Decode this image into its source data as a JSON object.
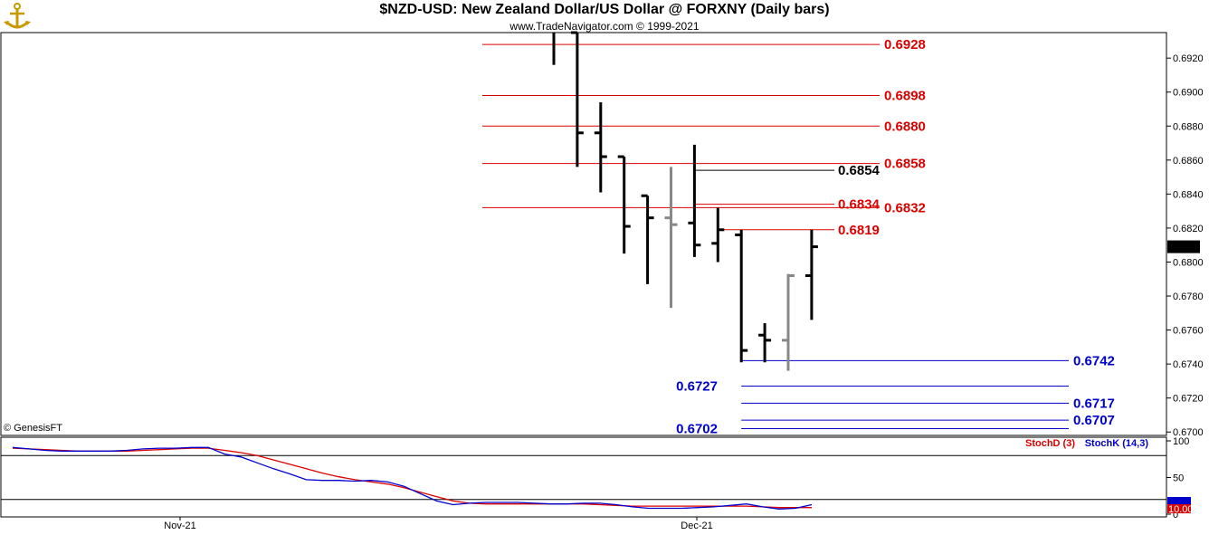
{
  "header": {
    "title": "$NZD-USD:  New Zealand Dollar/US Dollar @ FORXNY  (Daily bars)",
    "subtitle": "www.TradeNavigator.com © 1999-2021",
    "copyright": "© GenesisFT"
  },
  "chart_data": [
    {
      "type": "ohlc",
      "y_ticks": [
        "0.6920",
        "0.6900",
        "0.6880",
        "0.6860",
        "0.6840",
        "0.6820",
        "0.6800",
        "0.6780",
        "0.6760",
        "0.6740",
        "0.6720",
        "0.6700"
      ],
      "ylim": [
        0.6698,
        0.6935
      ],
      "last_price": "0.6809",
      "bars": [
        {
          "high": 0.6935,
          "low": 0.6916,
          "open": null,
          "close": null,
          "color": "#000000"
        },
        {
          "high": 0.6935,
          "low": 0.6856,
          "open": 0.6935,
          "close": 0.6876,
          "color": "#000000"
        },
        {
          "high": 0.6894,
          "low": 0.6841,
          "open": 0.6876,
          "close": 0.6862,
          "color": "#000000"
        },
        {
          "high": 0.6862,
          "low": 0.6805,
          "open": 0.6862,
          "close": 0.6821,
          "color": "#000000"
        },
        {
          "high": 0.6839,
          "low": 0.6787,
          "open": 0.6839,
          "close": 0.6826,
          "color": "#000000"
        },
        {
          "high": 0.6856,
          "low": 0.6773,
          "open": 0.6826,
          "close": 0.6822,
          "color": "#888888"
        },
        {
          "high": 0.6869,
          "low": 0.6803,
          "open": 0.6823,
          "close": 0.681,
          "color": "#000000"
        },
        {
          "high": 0.6832,
          "low": 0.68,
          "open": 0.6811,
          "close": 0.6819,
          "color": "#000000"
        },
        {
          "high": 0.6819,
          "low": 0.6741,
          "open": 0.6816,
          "close": 0.6748,
          "color": "#000000"
        },
        {
          "high": 0.6764,
          "low": 0.6741,
          "open": 0.6757,
          "close": 0.6754,
          "color": "#000000"
        },
        {
          "high": 0.6793,
          "low": 0.6736,
          "open": 0.6754,
          "close": 0.6792,
          "color": "#888888"
        },
        {
          "high": 0.6819,
          "low": 0.6766,
          "open": 0.6792,
          "close": 0.6809,
          "color": "#000000"
        }
      ],
      "levels": [
        {
          "value": 0.6928,
          "label": "0.6928",
          "color": "#dd0000",
          "start_bar": -1,
          "label_side": "right"
        },
        {
          "value": 0.6898,
          "label": "0.6898",
          "color": "#dd0000",
          "start_bar": -1,
          "label_side": "right"
        },
        {
          "value": 0.688,
          "label": "0.6880",
          "color": "#dd0000",
          "start_bar": -1,
          "label_side": "right"
        },
        {
          "value": 0.6858,
          "label": "0.6858",
          "color": "#dd0000",
          "start_bar": -1,
          "label_side": "right"
        },
        {
          "value": 0.6854,
          "label": "0.6854",
          "color": "#000000",
          "start_bar": 6,
          "label_side": "right-short"
        },
        {
          "value": 0.6834,
          "label": "0.6834",
          "color": "#dd0000",
          "start_bar": 6,
          "label_side": "right-short"
        },
        {
          "value": 0.6832,
          "label": "0.6832",
          "color": "#dd0000",
          "start_bar": -1,
          "label_side": "right"
        },
        {
          "value": 0.6819,
          "label": "0.6819",
          "color": "#dd0000",
          "start_bar": 7,
          "label_side": "right-short"
        },
        {
          "value": 0.6742,
          "label": "0.6742",
          "color": "#0000cc",
          "start_bar": 8,
          "label_side": "far-right"
        },
        {
          "value": 0.6727,
          "label": "0.6727",
          "color": "#0000cc",
          "start_bar": 8,
          "label_side": "left"
        },
        {
          "value": 0.6717,
          "label": "0.6717",
          "color": "#0000cc",
          "start_bar": 8,
          "label_side": "far-right"
        },
        {
          "value": 0.6707,
          "label": "0.6707",
          "color": "#0000cc",
          "start_bar": 8,
          "label_side": "far-right"
        },
        {
          "value": 0.6702,
          "label": "0.6702",
          "color": "#0000cc",
          "start_bar": 8,
          "label_side": "left"
        }
      ]
    },
    {
      "type": "line",
      "legend": [
        {
          "name": "StochD (3)",
          "color": "#dd0000"
        },
        {
          "name": "StochK (14,3)",
          "color": "#0000cc"
        }
      ],
      "y_ticks": [
        "100",
        "50",
        "0"
      ],
      "ylim": [
        0,
        100
      ],
      "guide_lines": [
        80,
        20
      ],
      "x_ticks": [
        "Nov-21",
        "Dec-21"
      ],
      "last_value_label": "10.00",
      "stoch_d": [
        90,
        89,
        88,
        87,
        86,
        86,
        86,
        86,
        87,
        88,
        89,
        90,
        90,
        87,
        84,
        80,
        74,
        68,
        62,
        56,
        51,
        47,
        44,
        41,
        36,
        30,
        24,
        18,
        15,
        14,
        14,
        14,
        14,
        14,
        14,
        14,
        13,
        12,
        11,
        11,
        11,
        11,
        11,
        11,
        11,
        11,
        10,
        9,
        9,
        9
      ],
      "stoch_k": [
        91,
        89,
        87,
        86,
        86,
        86,
        86,
        87,
        89,
        90,
        90,
        91,
        91,
        82,
        78,
        70,
        62,
        55,
        47,
        46,
        46,
        45,
        46,
        44,
        38,
        28,
        18,
        13,
        15,
        16,
        16,
        16,
        15,
        14,
        14,
        15,
        15,
        13,
        10,
        8,
        8,
        8,
        9,
        10,
        12,
        14,
        10,
        7,
        8,
        13
      ]
    }
  ]
}
